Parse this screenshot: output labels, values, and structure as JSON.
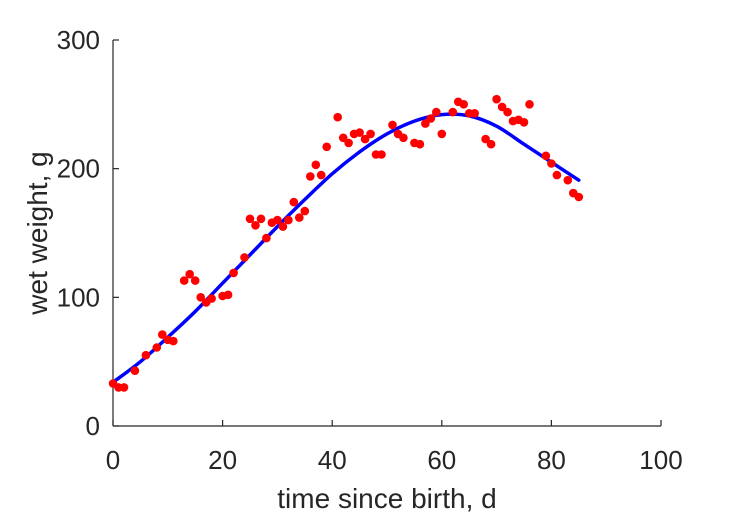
{
  "chart_data": {
    "type": "scatter",
    "xlabel": "time since birth, d",
    "ylabel": "wet weight, g",
    "xlim": [
      0,
      100
    ],
    "ylim": [
      0,
      300
    ],
    "xticks": [
      0,
      20,
      40,
      60,
      80,
      100
    ],
    "yticks": [
      0,
      100,
      200,
      300
    ],
    "xtick_labels": [
      "0",
      "20",
      "40",
      "60",
      "80",
      "100"
    ],
    "ytick_labels": [
      "0",
      "100",
      "200",
      "300"
    ],
    "grid": false,
    "legend": "none",
    "colors": {
      "points": "#ff0000",
      "fit": "#0000ff",
      "axes": "#262626"
    },
    "series": [
      {
        "kind": "points",
        "x": [
          0,
          1,
          2,
          4,
          6,
          8,
          9,
          10,
          11,
          13,
          14,
          15,
          16,
          17,
          18,
          20,
          21,
          22,
          24,
          25,
          26,
          27,
          28,
          29,
          30,
          31,
          32,
          33,
          34,
          35,
          36,
          37,
          38,
          39,
          41,
          42,
          43,
          44,
          45,
          46,
          47,
          48,
          49,
          51,
          52,
          53,
          55,
          56,
          57,
          58,
          59,
          60,
          62,
          63,
          64,
          65,
          66,
          68,
          69,
          70,
          71,
          72,
          73,
          74,
          75,
          76,
          79,
          80,
          81,
          83,
          84,
          85
        ],
        "y": [
          33,
          30,
          30,
          43,
          55,
          61,
          71,
          67,
          66,
          113,
          118,
          113,
          100,
          96,
          99,
          101,
          102,
          119,
          131,
          161,
          156,
          161,
          146,
          158,
          160,
          155,
          160,
          174,
          162,
          167,
          194,
          203,
          195,
          217,
          240,
          224,
          220,
          227,
          228,
          223,
          227,
          211,
          211,
          234,
          227,
          224,
          220,
          219,
          235,
          239,
          244,
          227,
          244,
          252,
          250,
          243,
          243,
          223,
          219,
          254,
          248,
          244,
          237,
          238,
          236,
          250,
          210,
          204,
          195,
          191,
          181,
          178
        ]
      },
      {
        "kind": "fit",
        "x": [
          0,
          5,
          10,
          15,
          20,
          25,
          30,
          35,
          40,
          45,
          50,
          55,
          60,
          65,
          70,
          75,
          80,
          85
        ],
        "y": [
          34,
          50,
          69,
          89,
          111,
          133,
          155,
          176,
          196,
          213,
          227,
          237,
          242,
          241,
          233,
          219,
          205,
          191
        ]
      }
    ]
  }
}
